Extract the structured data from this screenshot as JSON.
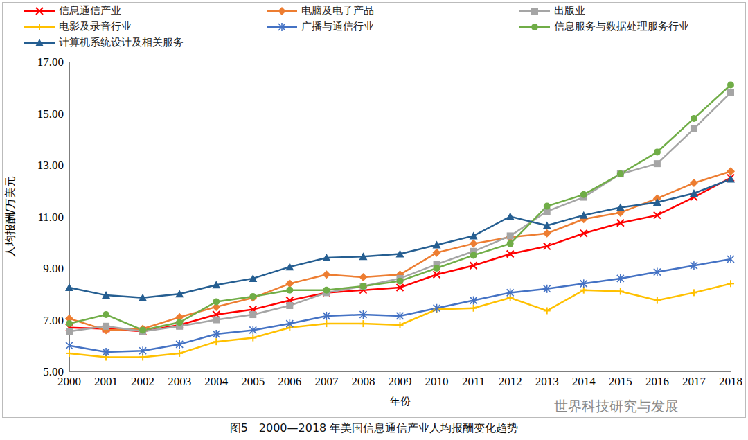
{
  "chart_data": {
    "type": "line",
    "title": "图5　2000—2018 年美国信息通信产业人均报酬变化趋势",
    "x_label": "年份",
    "y_label": "人均报酬/万美元",
    "annotations": [
      "世界科技研究与发展"
    ],
    "categories": [
      "2000",
      "2001",
      "2002",
      "2003",
      "2004",
      "2005",
      "2006",
      "2007",
      "2008",
      "2009",
      "2010",
      "2011",
      "2012",
      "2013",
      "2014",
      "2015",
      "2016",
      "2017",
      "2018"
    ],
    "ylim": [
      5,
      17
    ],
    "yticks": [
      {
        "value": 5,
        "label": "5.00"
      },
      {
        "value": 7,
        "label": "7.00"
      },
      {
        "value": 9,
        "label": "9.00"
      },
      {
        "value": 11,
        "label": "11.00"
      },
      {
        "value": 13,
        "label": "13.00"
      },
      {
        "value": 15,
        "label": "15.00"
      },
      {
        "value": 17,
        "label": "17.00"
      }
    ],
    "grid": false,
    "legend": "top",
    "series": [
      {
        "name": "信息通信产业",
        "color": "#FF0000",
        "marker": "x",
        "values": [
          6.7,
          6.65,
          6.55,
          6.8,
          7.2,
          7.4,
          7.75,
          8.05,
          8.15,
          8.25,
          8.75,
          9.1,
          9.55,
          9.85,
          10.35,
          10.75,
          11.05,
          11.75,
          12.5
        ]
      },
      {
        "name": "电脑及电子产品",
        "color": "#ED7D31",
        "marker": "diamond",
        "values": [
          7.05,
          6.6,
          6.65,
          7.1,
          7.5,
          7.85,
          8.4,
          8.75,
          8.65,
          8.75,
          9.6,
          9.95,
          10.2,
          10.35,
          10.9,
          11.15,
          11.7,
          12.3,
          12.75
        ]
      },
      {
        "name": "出版业",
        "color": "#A5A5A5",
        "marker": "square",
        "values": [
          6.55,
          6.75,
          6.55,
          6.75,
          7.0,
          7.2,
          7.55,
          8.05,
          8.3,
          8.6,
          9.15,
          9.65,
          10.25,
          11.2,
          11.75,
          12.65,
          13.05,
          14.4,
          15.8
        ]
      },
      {
        "name": "电影及录音行业",
        "color": "#FFC000",
        "marker": "plus",
        "values": [
          5.7,
          5.55,
          5.55,
          5.7,
          6.15,
          6.3,
          6.7,
          6.85,
          6.85,
          6.8,
          7.4,
          7.45,
          7.85,
          7.35,
          8.15,
          8.1,
          7.75,
          8.05,
          8.4
        ]
      },
      {
        "name": "广播与通信行业",
        "color": "#4472C4",
        "marker": "star",
        "values": [
          6.0,
          5.75,
          5.8,
          6.05,
          6.45,
          6.6,
          6.85,
          7.15,
          7.2,
          7.15,
          7.45,
          7.75,
          8.05,
          8.2,
          8.4,
          8.6,
          8.85,
          9.1,
          9.35
        ]
      },
      {
        "name": "信息服务与数据处理服务行业",
        "color": "#70AD47",
        "marker": "circle",
        "values": [
          6.85,
          7.2,
          6.6,
          6.9,
          7.7,
          7.9,
          8.15,
          8.15,
          8.3,
          8.5,
          9.0,
          9.5,
          9.95,
          11.4,
          11.85,
          12.65,
          13.5,
          14.8,
          16.1
        ]
      },
      {
        "name": "计算机系统设计及相关服务",
        "color": "#255E91",
        "marker": "triangle",
        "values": [
          8.25,
          7.95,
          7.85,
          8.0,
          8.35,
          8.6,
          9.05,
          9.4,
          9.45,
          9.55,
          9.9,
          10.25,
          11.0,
          10.65,
          11.05,
          11.35,
          11.55,
          11.9,
          12.45
        ]
      }
    ]
  }
}
